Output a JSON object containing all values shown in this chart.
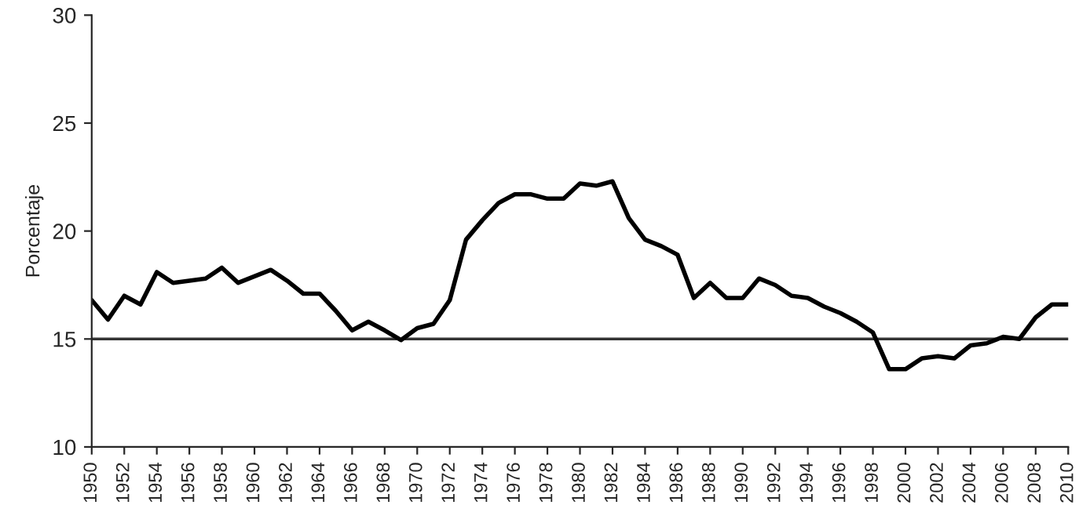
{
  "chart_data": {
    "type": "line",
    "ylabel": "Porcentaje",
    "x": [
      1950,
      1951,
      1952,
      1953,
      1954,
      1955,
      1956,
      1957,
      1958,
      1959,
      1960,
      1961,
      1962,
      1963,
      1964,
      1965,
      1966,
      1967,
      1968,
      1969,
      1970,
      1971,
      1972,
      1973,
      1974,
      1975,
      1976,
      1977,
      1978,
      1979,
      1980,
      1981,
      1982,
      1983,
      1984,
      1985,
      1986,
      1987,
      1988,
      1989,
      1990,
      1991,
      1992,
      1993,
      1994,
      1995,
      1996,
      1997,
      1998,
      1999,
      2000,
      2001,
      2002,
      2003,
      2004,
      2005,
      2006,
      2007,
      2008,
      2009,
      2010
    ],
    "series": [
      {
        "color": "#000000",
        "values": [
          16.8,
          15.9,
          17.0,
          16.6,
          18.1,
          17.6,
          17.7,
          17.8,
          18.3,
          17.6,
          17.9,
          18.2,
          17.7,
          17.1,
          17.1,
          16.3,
          15.4,
          15.8,
          15.4,
          14.95,
          15.5,
          15.7,
          16.8,
          19.6,
          20.5,
          21.3,
          21.7,
          21.7,
          21.5,
          21.5,
          22.2,
          22.1,
          22.3,
          20.6,
          19.6,
          19.3,
          18.9,
          16.9,
          17.6,
          16.9,
          16.9,
          17.8,
          17.5,
          17.0,
          16.9,
          16.5,
          16.2,
          15.8,
          15.3,
          13.6,
          13.6,
          14.1,
          14.2,
          14.1,
          14.7,
          14.8,
          15.1,
          15.0,
          16.0,
          16.6,
          16.6
        ]
      }
    ],
    "xlim": [
      1950,
      2010
    ],
    "xticks": [
      1950,
      1952,
      1954,
      1956,
      1958,
      1960,
      1962,
      1964,
      1966,
      1968,
      1970,
      1972,
      1974,
      1976,
      1978,
      1980,
      1982,
      1984,
      1986,
      1988,
      1990,
      1992,
      1994,
      1996,
      1998,
      2000,
      2002,
      2004,
      2006,
      2008,
      2010
    ],
    "ylim": [
      10,
      30
    ],
    "yticks": [
      10,
      15,
      20,
      25,
      30
    ],
    "ref_lines": [
      {
        "axis": "y",
        "value": 15,
        "color": "#333333"
      }
    ],
    "grid": false,
    "legend": false,
    "line_style": "solid",
    "marker": "none"
  }
}
